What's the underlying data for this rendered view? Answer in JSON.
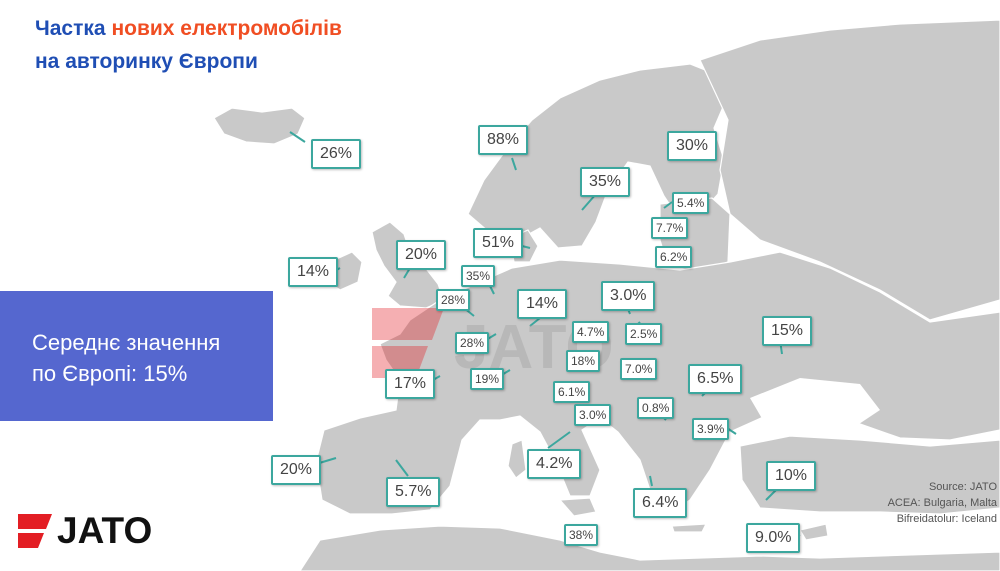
{
  "title": {
    "line1_prefix": "Частка",
    "line1_accent": "нових електромобілів",
    "line2": "на авторинку Європи"
  },
  "average": {
    "line1": "Середнє значення",
    "line2": "по Європі: 15%"
  },
  "source": {
    "line1": "Source: JATO",
    "line2": "ACEA: Bulgaria, Malta",
    "line3": "Bifreidatolur: Iceland"
  },
  "logo": {
    "text": "JATO"
  },
  "colors": {
    "land": "#c9c9c9",
    "callout_border": "#3ca79e",
    "average_box": "#5567cf",
    "title_blue": "#1f4eb4",
    "title_accent": "#f04e23",
    "logo_red": "#e31e24"
  },
  "labels": [
    {
      "value": "26%",
      "country_hint": "Iceland"
    },
    {
      "value": "88%",
      "country_hint": "Norway"
    },
    {
      "value": "30%",
      "country_hint": "Finland"
    },
    {
      "value": "35%",
      "country_hint": "Sweden"
    },
    {
      "value": "5.4%",
      "country_hint": "Estonia"
    },
    {
      "value": "7.7%",
      "country_hint": "Latvia"
    },
    {
      "value": "6.2%",
      "country_hint": "Lithuania"
    },
    {
      "value": "51%",
      "country_hint": "Denmark"
    },
    {
      "value": "20%",
      "country_hint": "United Kingdom"
    },
    {
      "value": "14%",
      "country_hint": "Ireland"
    },
    {
      "value": "35%",
      "country_hint": "Netherlands"
    },
    {
      "value": "28%",
      "country_hint": "Belgium"
    },
    {
      "value": "14%",
      "country_hint": "Germany"
    },
    {
      "value": "3.0%",
      "country_hint": "Poland"
    },
    {
      "value": "15%",
      "country_hint": "Ukraine"
    },
    {
      "value": "28%",
      "country_hint": "Luxembourg"
    },
    {
      "value": "4.7%",
      "country_hint": "Czechia"
    },
    {
      "value": "2.5%",
      "country_hint": "Slovakia"
    },
    {
      "value": "17%",
      "country_hint": "France"
    },
    {
      "value": "19%",
      "country_hint": "Switzerland"
    },
    {
      "value": "18%",
      "country_hint": "Austria"
    },
    {
      "value": "7.0%",
      "country_hint": "Hungary"
    },
    {
      "value": "6.5%",
      "country_hint": "Romania"
    },
    {
      "value": "6.1%",
      "country_hint": "Slovenia"
    },
    {
      "value": "3.0%",
      "country_hint": "Croatia"
    },
    {
      "value": "0.8%",
      "country_hint": "Serbia"
    },
    {
      "value": "3.9%",
      "country_hint": "Bulgaria"
    },
    {
      "value": "4.2%",
      "country_hint": "Italy"
    },
    {
      "value": "20%",
      "country_hint": "Portugal"
    },
    {
      "value": "5.7%",
      "country_hint": "Spain"
    },
    {
      "value": "6.4%",
      "country_hint": "Greece"
    },
    {
      "value": "10%",
      "country_hint": "Turkey"
    },
    {
      "value": "38%",
      "country_hint": "Malta"
    },
    {
      "value": "9.0%",
      "country_hint": "Cyprus"
    }
  ]
}
